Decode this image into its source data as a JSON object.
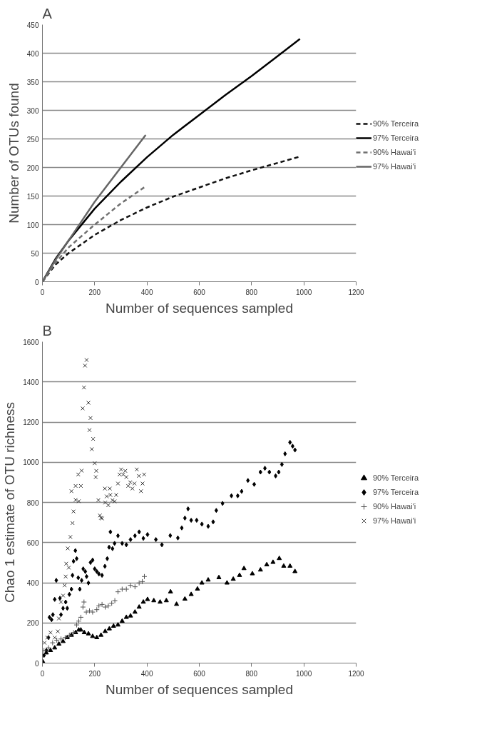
{
  "chart_data": [
    {
      "type": "line",
      "title": "A",
      "xlabel": "Number of sequences sampled",
      "ylabel": "Number of OTUs found",
      "xlim": [
        0,
        1200
      ],
      "xticks": [
        0,
        200,
        400,
        600,
        800,
        1000,
        1200
      ],
      "ylim": [
        0,
        450
      ],
      "yticks": [
        0,
        50,
        100,
        150,
        200,
        250,
        300,
        350,
        400,
        450
      ],
      "grid": "y",
      "legend": "right",
      "marker": "none",
      "series": [
        {
          "name": "90% Terceira",
          "color": "#111111",
          "line_style": "dashed",
          "x": [
            0,
            50,
            100,
            200,
            300,
            400,
            500,
            600,
            700,
            800,
            900,
            985
          ],
          "values": [
            0,
            30,
            50,
            82,
            108,
            130,
            149,
            165,
            181,
            195,
            208,
            219
          ]
        },
        {
          "name": "97% Terceira",
          "color": "#000000",
          "line_style": "solid",
          "x": [
            0,
            50,
            100,
            200,
            300,
            400,
            500,
            600,
            700,
            800,
            900,
            985
          ],
          "values": [
            0,
            40,
            72,
            128,
            175,
            218,
            257,
            292,
            327,
            360,
            395,
            425
          ]
        },
        {
          "name": "90% Hawai'i",
          "color": "#707070",
          "line_style": "dashed",
          "x": [
            0,
            50,
            100,
            200,
            300,
            395
          ],
          "values": [
            0,
            33,
            60,
            100,
            137,
            167
          ]
        },
        {
          "name": "97% Hawai'i",
          "color": "#666666",
          "line_style": "solid",
          "x": [
            0,
            50,
            100,
            200,
            300,
            395
          ],
          "values": [
            0,
            38,
            72,
            140,
            200,
            257
          ]
        }
      ]
    },
    {
      "type": "scatter",
      "title": "B",
      "xlabel": "Number of sequences sampled",
      "ylabel": "Chao 1 estimate of OTU richness",
      "xlim": [
        0,
        1200
      ],
      "xticks": [
        0,
        200,
        400,
        600,
        800,
        1000,
        1200
      ],
      "ylim": [
        0,
        1600
      ],
      "yticks": [
        0,
        200,
        400,
        600,
        800,
        1000,
        1200,
        1400,
        1600
      ],
      "grid": "y",
      "legend": "right",
      "series": [
        {
          "name": "90% Terceira",
          "color": "#000000",
          "marker": "triangle",
          "x": [
            2,
            15,
            31,
            47,
            63,
            79,
            95,
            111,
            127,
            139,
            147,
            160,
            176,
            192,
            208,
            224,
            240,
            256,
            272,
            289,
            305,
            321,
            337,
            354,
            370,
            386,
            402,
            426,
            450,
            474,
            490,
            513,
            545,
            569,
            593,
            610,
            634,
            675,
            706,
            730,
            754,
            771,
            803,
            834,
            858,
            882,
            906,
            923,
            947,
            966
          ],
          "values": [
            6,
            51,
            63,
            76,
            95,
            108,
            127,
            139,
            152,
            165,
            165,
            152,
            146,
            133,
            127,
            139,
            158,
            171,
            184,
            190,
            209,
            228,
            235,
            254,
            279,
            304,
            317,
            311,
            304,
            311,
            355,
            293,
            319,
            342,
            369,
            399,
            414,
            426,
            399,
            418,
            437,
            471,
            445,
            464,
            490,
            502,
            521,
            483,
            483,
            456
          ]
        },
        {
          "name": "97% Terceira",
          "color": "#000000",
          "marker": "diamond",
          "x": [
            6,
            15,
            23,
            27,
            35,
            40,
            47,
            53,
            67,
            71,
            79,
            89,
            95,
            103,
            111,
            115,
            119,
            126,
            131,
            137,
            143,
            150,
            156,
            164,
            169,
            176,
            184,
            192,
            200,
            208,
            216,
            228,
            239,
            248,
            255,
            260,
            268,
            276,
            289,
            305,
            321,
            337,
            354,
            370,
            386,
            402,
            434,
            457,
            489,
            518,
            533,
            545,
            557,
            569,
            590,
            610,
            634,
            653,
            665,
            689,
            723,
            747,
            762,
            786,
            810,
            834,
            851,
            868,
            892,
            904,
            916,
            928,
            947,
            957,
            966
          ],
          "values": [
            38,
            63,
            127,
            228,
            216,
            241,
            317,
            412,
            323,
            241,
            273,
            304,
            273,
            342,
            368,
            437,
            507,
            560,
            520,
            425,
            368,
            412,
            469,
            456,
            431,
            399,
            501,
            513,
            469,
            456,
            444,
            437,
            482,
            520,
            577,
            653,
            570,
            596,
            634,
            596,
            589,
            615,
            634,
            653,
            621,
            640,
            615,
            589,
            635,
            623,
            673,
            722,
            768,
            711,
            711,
            692,
            681,
            703,
            760,
            795,
            833,
            833,
            855,
            909,
            890,
            951,
            970,
            951,
            932,
            951,
            989,
            1042,
            1099,
            1080,
            1061
          ]
        },
        {
          "name": "90% Hawai'i",
          "color": "#555555",
          "marker": "cross",
          "x": [
            6,
            23,
            39,
            55,
            71,
            87,
            103,
            119,
            131,
            139,
            147,
            155,
            159,
            168,
            180,
            192,
            208,
            216,
            228,
            240,
            252,
            265,
            277,
            289,
            305,
            321,
            337,
            354,
            370,
            382,
            390
          ],
          "values": [
            63,
            76,
            101,
            114,
            120,
            127,
            139,
            152,
            190,
            209,
            228,
            279,
            304,
            254,
            260,
            254,
            266,
            285,
            292,
            279,
            285,
            298,
            311,
            355,
            368,
            368,
            387,
            380,
            399,
            406,
            431
          ]
        },
        {
          "name": "97% Hawai'i",
          "color": "#333333",
          "marker": "x",
          "x": [
            8,
            19,
            31,
            47,
            59,
            63,
            71,
            79,
            85,
            89,
            91,
            101,
            97,
            107,
            115,
            119,
            111,
            127,
            127,
            139,
            137,
            147,
            150,
            154,
            159,
            163,
            169,
            176,
            184,
            180,
            194,
            189,
            200,
            206,
            204,
            214,
            220,
            224,
            228,
            239,
            240,
            246,
            252,
            258,
            260,
            268,
            276,
            282,
            289,
            295,
            301,
            309,
            317,
            321,
            328,
            336,
            344,
            352,
            361,
            369,
            377,
            383,
            389
          ],
          "values": [
            101,
            127,
            152,
            127,
            158,
            222,
            304,
            336,
            387,
            431,
            495,
            475,
            571,
            628,
            697,
            755,
            856,
            812,
            882,
            806,
            939,
            882,
            958,
            1268,
            1372,
            1481,
            1509,
            1296,
            1220,
            1160,
            1116,
            1065,
            995,
            957,
            926,
            811,
            735,
            723,
            720,
            869,
            799,
            830,
            786,
            869,
            837,
            811,
            805,
            837,
            894,
            939,
            964,
            939,
            957,
            926,
            882,
            900,
            869,
            894,
            964,
            932,
            856,
            894,
            939
          ]
        }
      ]
    }
  ]
}
